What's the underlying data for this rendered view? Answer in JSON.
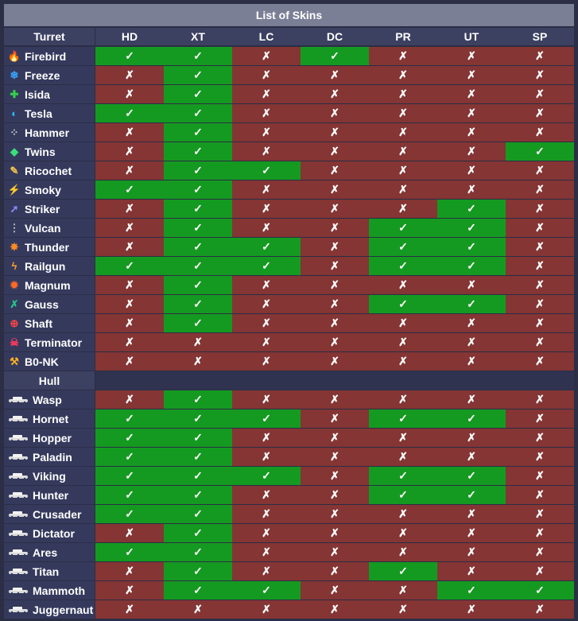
{
  "title": "List of Skins",
  "colors": {
    "header_bg": "#7b7f96",
    "column_header_bg": "#3c4061",
    "row_name_bg": "#353a5d",
    "yes_bg": "#159a21",
    "no_bg": "#843534"
  },
  "marks": {
    "yes": "✓",
    "no": "✗"
  },
  "columns": [
    "HD",
    "XT",
    "LC",
    "DC",
    "PR",
    "UT",
    "SP"
  ],
  "turret": {
    "header": "Turret",
    "rows": [
      {
        "name": "Firebird",
        "icon": "flame-icon",
        "glyph": "🔥",
        "color": "#ff5a1f",
        "values": [
          1,
          1,
          0,
          1,
          0,
          0,
          0
        ]
      },
      {
        "name": "Freeze",
        "icon": "snowflake-icon",
        "glyph": "❄",
        "color": "#3aa6ff",
        "values": [
          0,
          1,
          0,
          0,
          0,
          0,
          0
        ]
      },
      {
        "name": "Isida",
        "icon": "plus-icon",
        "glyph": "✚",
        "color": "#34d04a",
        "values": [
          0,
          1,
          0,
          0,
          0,
          0,
          0
        ]
      },
      {
        "name": "Tesla",
        "icon": "tesla-icon",
        "glyph": "◐",
        "color": "#2db8ff",
        "values": [
          1,
          1,
          0,
          0,
          0,
          0,
          0
        ]
      },
      {
        "name": "Hammer",
        "icon": "pellets-icon",
        "glyph": "⁘",
        "color": "#c9c9c9",
        "values": [
          0,
          1,
          0,
          0,
          0,
          0,
          0
        ]
      },
      {
        "name": "Twins",
        "icon": "twin-shots-icon",
        "glyph": "◆",
        "color": "#38e07a",
        "values": [
          0,
          1,
          0,
          0,
          0,
          0,
          1
        ]
      },
      {
        "name": "Ricochet",
        "icon": "ricochet-icon",
        "glyph": "✎",
        "color": "#f2c14a",
        "values": [
          0,
          1,
          1,
          0,
          0,
          0,
          0
        ]
      },
      {
        "name": "Smoky",
        "icon": "bolt-icon",
        "glyph": "⚡",
        "color": "#ffd21a",
        "values": [
          1,
          1,
          0,
          0,
          0,
          0,
          0
        ]
      },
      {
        "name": "Striker",
        "icon": "missile-icon",
        "glyph": "➚",
        "color": "#8a8cff",
        "values": [
          0,
          1,
          0,
          0,
          0,
          1,
          0
        ]
      },
      {
        "name": "Vulcan",
        "icon": "bullets-icon",
        "glyph": "⋮",
        "color": "#bcbcbc",
        "values": [
          0,
          1,
          0,
          0,
          1,
          1,
          0
        ]
      },
      {
        "name": "Thunder",
        "icon": "burst-icon",
        "glyph": "✸",
        "color": "#ff8a1f",
        "values": [
          0,
          1,
          1,
          0,
          1,
          1,
          0
        ]
      },
      {
        "name": "Railgun",
        "icon": "lightning-icon",
        "glyph": "ϟ",
        "color": "#ff9d2a",
        "values": [
          1,
          1,
          1,
          0,
          1,
          1,
          0
        ]
      },
      {
        "name": "Magnum",
        "icon": "explosion-icon",
        "glyph": "✹",
        "color": "#ff6a2a",
        "values": [
          0,
          1,
          0,
          0,
          0,
          0,
          0
        ]
      },
      {
        "name": "Gauss",
        "icon": "gauss-icon",
        "glyph": "✗",
        "color": "#25c98a",
        "values": [
          0,
          1,
          0,
          0,
          1,
          1,
          0
        ]
      },
      {
        "name": "Shaft",
        "icon": "crosshair-icon",
        "glyph": "⊕",
        "color": "#ff4545",
        "values": [
          0,
          1,
          0,
          0,
          0,
          0,
          0
        ]
      },
      {
        "name": "Terminator",
        "icon": "skull-icon",
        "glyph": "☠",
        "color": "#ff3b5c",
        "values": [
          0,
          0,
          0,
          0,
          0,
          0,
          0
        ]
      },
      {
        "name": "B0-NK",
        "icon": "hammer-icon",
        "glyph": "⚒",
        "color": "#ffb020",
        "values": [
          0,
          0,
          0,
          0,
          0,
          0,
          0
        ]
      }
    ]
  },
  "hull": {
    "header": "Hull",
    "rows": [
      {
        "name": "Wasp",
        "icon": "wasp-hull-icon",
        "values": [
          0,
          1,
          0,
          0,
          0,
          0,
          0
        ]
      },
      {
        "name": "Hornet",
        "icon": "hornet-hull-icon",
        "values": [
          1,
          1,
          1,
          0,
          1,
          1,
          0
        ]
      },
      {
        "name": "Hopper",
        "icon": "hopper-hull-icon",
        "values": [
          1,
          1,
          0,
          0,
          0,
          0,
          0
        ]
      },
      {
        "name": "Paladin",
        "icon": "paladin-hull-icon",
        "values": [
          1,
          1,
          0,
          0,
          0,
          0,
          0
        ]
      },
      {
        "name": "Viking",
        "icon": "viking-hull-icon",
        "values": [
          1,
          1,
          1,
          0,
          1,
          1,
          0
        ]
      },
      {
        "name": "Hunter",
        "icon": "hunter-hull-icon",
        "values": [
          1,
          1,
          0,
          0,
          1,
          1,
          0
        ]
      },
      {
        "name": "Crusader",
        "icon": "crusader-hull-icon",
        "values": [
          1,
          1,
          0,
          0,
          0,
          0,
          0
        ]
      },
      {
        "name": "Dictator",
        "icon": "dictator-hull-icon",
        "values": [
          0,
          1,
          0,
          0,
          0,
          0,
          0
        ]
      },
      {
        "name": "Ares",
        "icon": "ares-hull-icon",
        "values": [
          1,
          1,
          0,
          0,
          0,
          0,
          0
        ]
      },
      {
        "name": "Titan",
        "icon": "titan-hull-icon",
        "values": [
          0,
          1,
          0,
          0,
          1,
          0,
          0
        ]
      },
      {
        "name": "Mammoth",
        "icon": "mammoth-hull-icon",
        "values": [
          0,
          1,
          1,
          0,
          0,
          1,
          1
        ]
      },
      {
        "name": "Juggernaut",
        "icon": "juggernaut-hull-icon",
        "values": [
          0,
          0,
          0,
          0,
          0,
          0,
          0
        ]
      }
    ]
  }
}
